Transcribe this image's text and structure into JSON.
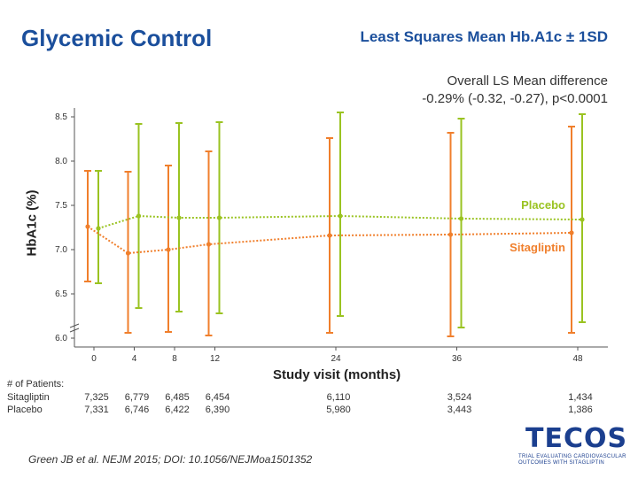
{
  "slide": {
    "title": "Glycemic Control",
    "citation": "Green JB et al. NEJM 2015; DOI: 10.1056/NEJMoa1501352"
  },
  "logo": {
    "word": "TECOS",
    "line1": "TRIAL EVALUATING CARDIOVASCULAR",
    "line2": "OUTCOMES WITH SITAGLIPTIN",
    "color": "#1b3f8f"
  },
  "annotation": {
    "line1": "Overall LS Mean difference",
    "line2": "-0.29% (-0.32, -0.27), p<0.0001"
  },
  "patients": {
    "header": "# of Patients:",
    "rows": [
      {
        "label": "Sitagliptin",
        "values": [
          "7,325",
          "6,779",
          "6,485",
          "6,454",
          "6,110",
          "3,524",
          "1,434"
        ]
      },
      {
        "label": "Placebo",
        "values": [
          "7,331",
          "6,746",
          "6,422",
          "6,390",
          "5,980",
          "3,443",
          "1,386"
        ]
      }
    ]
  },
  "chart_data": {
    "type": "line",
    "title": "Least Squares Mean Hb.A1c ± 1SD",
    "xlabel": "Study visit (months)",
    "ylabel": "HbA1c (%)",
    "x": [
      0,
      4,
      8,
      12,
      24,
      36,
      48
    ],
    "xticks": [
      "0",
      "4",
      "8",
      "12",
      "24",
      "36",
      "48"
    ],
    "yticks": [
      "6.0",
      "6.5",
      "7.0",
      "7.5",
      "8.0",
      "8.5"
    ],
    "ylim": [
      5.9,
      8.6
    ],
    "axis_break": true,
    "series": [
      {
        "name": "Placebo",
        "color": "#9ac321",
        "values": [
          7.24,
          7.38,
          7.36,
          7.36,
          7.38,
          7.35,
          7.34
        ],
        "lower": [
          6.62,
          6.34,
          6.3,
          6.28,
          6.25,
          6.12,
          6.18
        ],
        "upper": [
          7.89,
          8.42,
          8.43,
          8.44,
          8.55,
          8.48,
          8.53
        ]
      },
      {
        "name": "Sitagliptin",
        "color": "#f07f2c",
        "values": [
          7.26,
          6.96,
          7.0,
          7.06,
          7.16,
          7.17,
          7.19
        ],
        "lower": [
          6.64,
          6.06,
          6.07,
          6.03,
          6.06,
          6.02,
          6.06
        ],
        "upper": [
          7.89,
          7.88,
          7.95,
          8.11,
          8.26,
          8.32,
          8.39
        ]
      }
    ]
  }
}
